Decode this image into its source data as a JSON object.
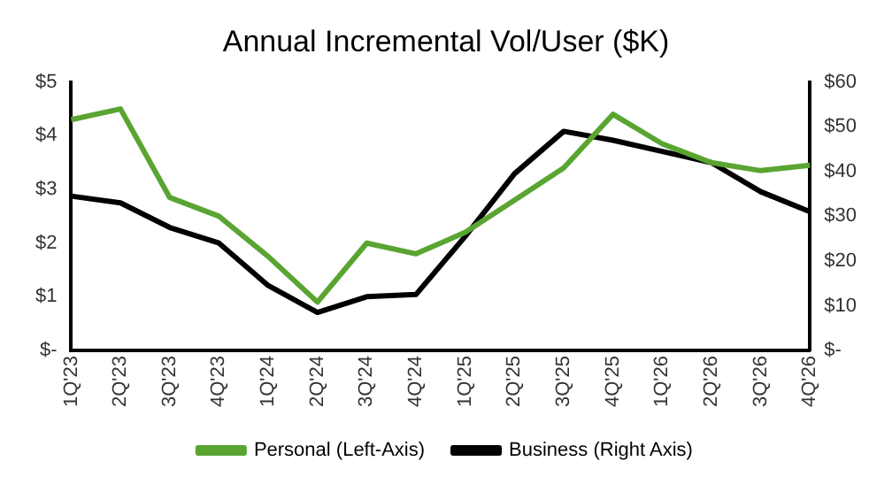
{
  "chart_data": {
    "type": "line",
    "title": "Annual Incremental Vol/User ($K)",
    "categories": [
      "1Q'23",
      "2Q'23",
      "3Q'23",
      "4Q'23",
      "1Q'24",
      "2Q'24",
      "3Q'24",
      "4Q'24",
      "1Q'25",
      "2Q'25",
      "3Q'25",
      "4Q'25",
      "1Q'26",
      "2Q'26",
      "3Q'26",
      "4Q'26"
    ],
    "series": [
      {
        "name": "Personal (Left-Axis)",
        "color": "#5aa532",
        "values": [
          4.3,
          4.5,
          2.85,
          2.5,
          1.75,
          0.9,
          2.0,
          1.8,
          2.2,
          2.8,
          3.4,
          4.4,
          3.85,
          3.5,
          3.35,
          3.45
        ]
      },
      {
        "name": "Business (Right Axis)",
        "color": "#000000",
        "axis": "y2",
        "values": [
          34.5,
          33,
          27.5,
          24,
          14.5,
          8.5,
          12,
          12.5,
          25.5,
          39.5,
          49,
          47,
          44.5,
          42,
          35.5,
          31
        ]
      }
    ],
    "ylim": [
      0,
      5
    ],
    "yticks": [
      {
        "value": 0,
        "label": "$-"
      },
      {
        "value": 1,
        "label": "$1"
      },
      {
        "value": 2,
        "label": "$2"
      },
      {
        "value": 3,
        "label": "$3"
      },
      {
        "value": 4,
        "label": "$4"
      },
      {
        "value": 5,
        "label": "$5"
      }
    ],
    "y2lim": [
      0,
      60
    ],
    "y2ticks": [
      {
        "value": 0,
        "label": "$-"
      },
      {
        "value": 10,
        "label": "$10"
      },
      {
        "value": 20,
        "label": "$20"
      },
      {
        "value": 30,
        "label": "$30"
      },
      {
        "value": 40,
        "label": "$40"
      },
      {
        "value": 50,
        "label": "$50"
      },
      {
        "value": 60,
        "label": "$60"
      }
    ],
    "grid": false,
    "legend": "bottom",
    "marker": "none",
    "line_style": "solid"
  }
}
